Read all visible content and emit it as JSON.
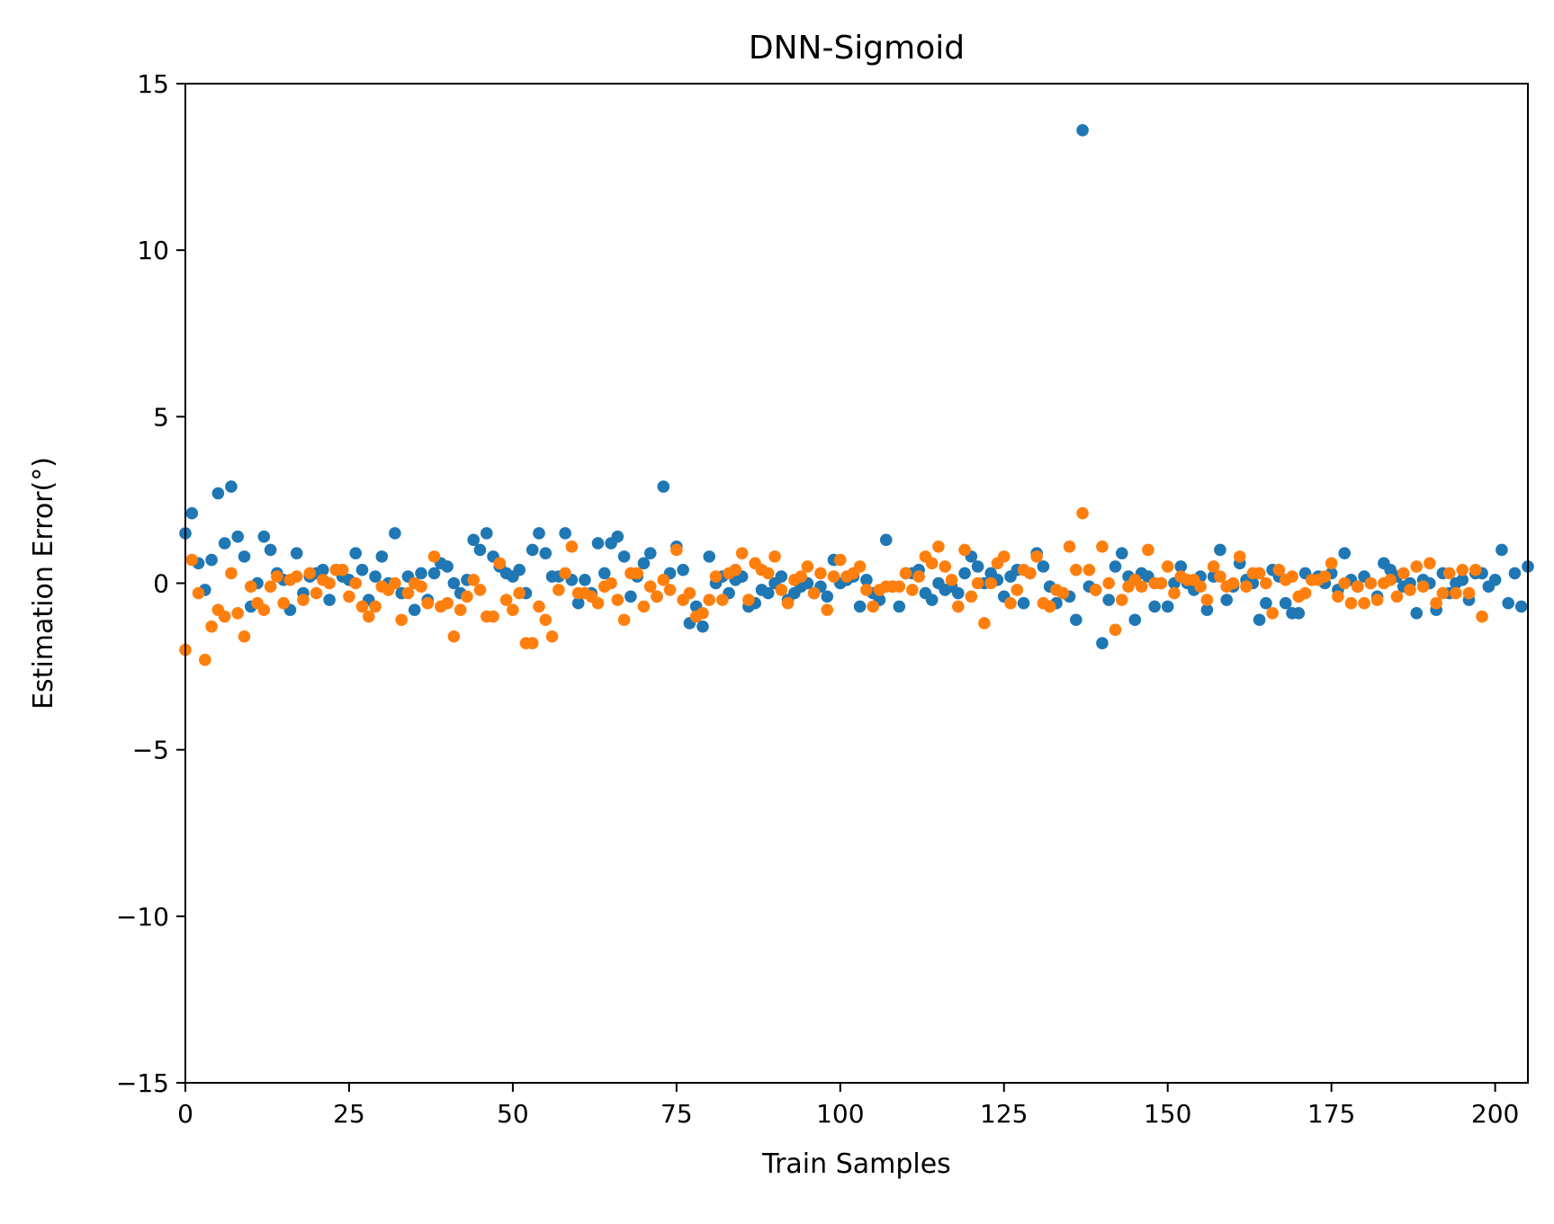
{
  "chart_data": {
    "type": "scatter",
    "title": "DNN-Sigmoid",
    "xlabel": "Train Samples",
    "ylabel": "Estimation Error(°)",
    "xlim": [
      0,
      205
    ],
    "ylim": [
      -15,
      15
    ],
    "xticks": [
      0,
      25,
      50,
      75,
      100,
      125,
      150,
      175,
      200
    ],
    "yticks": [
      -15,
      -10,
      -5,
      0,
      5,
      10,
      15
    ],
    "ytick_labels": [
      "−15",
      "−10",
      "−5",
      "0",
      "5",
      "10",
      "15"
    ],
    "grid": false,
    "colors": [
      "#1f77b4",
      "#ff7f0e"
    ],
    "series": [
      {
        "values": [
          1.5,
          2.1,
          0.6,
          -0.2,
          0.7,
          2.7,
          1.2,
          2.9,
          1.4,
          0.8,
          -0.7,
          0.0,
          1.4,
          1.0,
          0.3,
          0.1,
          -0.8,
          0.9,
          -0.3,
          0.2,
          0.3,
          0.4,
          -0.5,
          0.4,
          0.2,
          0.1,
          0.9,
          0.4,
          -0.5,
          0.2,
          0.8,
          0.0,
          1.5,
          -0.3,
          0.2,
          -0.8,
          0.3,
          -0.5,
          0.3,
          0.6,
          0.5,
          0.0,
          -0.3,
          0.1,
          1.3,
          1.0,
          1.5,
          0.8,
          0.5,
          0.3,
          0.2,
          0.4,
          -0.3,
          1.0,
          1.5,
          0.9,
          0.2,
          0.2,
          1.5,
          0.1,
          -0.6,
          0.1,
          -0.3,
          1.2,
          0.3,
          1.2,
          1.4,
          0.8,
          -0.4,
          0.2,
          0.6,
          0.9,
          -0.4,
          2.9,
          0.3,
          1.1,
          0.4,
          -1.2,
          -0.7,
          -1.3,
          0.8,
          0.0,
          0.2,
          -0.3,
          0.1,
          0.2,
          -0.7,
          -0.6,
          -0.2,
          -0.3,
          0.0,
          0.2,
          -0.5,
          -0.3,
          -0.1,
          0.0,
          -0.3,
          -0.1,
          -0.4,
          0.7,
          0.0,
          0.1,
          0.2,
          -0.7,
          0.1,
          -0.3,
          -0.5,
          1.3,
          -0.1,
          -0.7,
          0.3,
          0.3,
          0.4,
          -0.3,
          -0.5,
          0.0,
          -0.2,
          -0.1,
          -0.3,
          0.3,
          0.8,
          0.5,
          0.0,
          0.3,
          0.1,
          -0.4,
          0.2,
          0.4,
          -0.6,
          0.3,
          0.9,
          0.5,
          -0.1,
          -0.6,
          -0.3,
          -0.4,
          -1.1,
          13.6,
          -0.1,
          -0.2,
          -1.8,
          -0.5,
          0.5,
          0.9,
          0.2,
          -1.1,
          0.3,
          0.2,
          -0.7,
          0.0,
          -0.7,
          0.0,
          0.5,
          0.0,
          -0.2,
          0.2,
          -0.8,
          0.2,
          1.0,
          -0.5,
          -0.1,
          0.6,
          0.1,
          0.0,
          -1.1,
          -0.6,
          0.4,
          0.2,
          -0.6,
          -0.9,
          -0.9,
          0.3,
          0.1,
          0.2,
          0.0,
          0.3,
          -0.2,
          0.9,
          0.1,
          -0.1,
          0.2,
          0.0,
          -0.4,
          0.6,
          0.4,
          0.2,
          -0.1,
          0.0,
          -0.9,
          0.1,
          0.0,
          -0.8,
          0.3,
          -0.3,
          0.0,
          0.1,
          -0.5,
          0.3,
          0.3,
          -0.1,
          0.1,
          1.0,
          -0.6,
          0.3,
          -0.7,
          0.5
        ],
        "x_start": 0
      },
      {
        "values": [
          -2.0,
          0.7,
          -0.3,
          -2.3,
          -1.3,
          -0.8,
          -1.0,
          0.3,
          -0.9,
          -1.6,
          -0.1,
          -0.6,
          -0.8,
          -0.1,
          0.2,
          -0.6,
          0.1,
          0.2,
          -0.5,
          0.3,
          -0.3,
          0.1,
          0.0,
          0.4,
          0.4,
          -0.4,
          0.0,
          -0.7,
          -1.0,
          -0.7,
          -0.1,
          -0.2,
          0.0,
          -1.1,
          -0.3,
          0.0,
          -0.1,
          -0.6,
          0.8,
          -0.7,
          -0.6,
          -1.6,
          -0.8,
          -0.4,
          0.1,
          -0.2,
          -1.0,
          -1.0,
          0.6,
          -0.5,
          -0.8,
          -0.3,
          -1.8,
          -1.8,
          -0.7,
          -1.1,
          -1.6,
          -0.2,
          0.3,
          1.1,
          -0.3,
          -0.3,
          -0.4,
          -0.6,
          -0.1,
          0.0,
          -0.5,
          -1.1,
          0.3,
          0.3,
          -0.7,
          -0.1,
          -0.4,
          0.1,
          -0.2,
          1.0,
          -0.5,
          -0.3,
          -1.0,
          -0.9,
          -0.5,
          0.2,
          -0.5,
          0.3,
          0.4,
          0.9,
          -0.5,
          0.6,
          0.4,
          0.3,
          0.8,
          -0.2,
          -0.6,
          0.1,
          0.2,
          0.5,
          -0.3,
          0.3,
          -0.8,
          0.2,
          0.7,
          0.2,
          0.3,
          0.5,
          -0.2,
          -0.7,
          -0.2,
          -0.1,
          -0.1,
          -0.1,
          0.3,
          -0.2,
          0.2,
          0.8,
          0.6,
          1.1,
          0.5,
          0.1,
          -0.7,
          1.0,
          -0.4,
          0.0,
          -1.2,
          0.0,
          0.6,
          0.8,
          -0.6,
          -0.2,
          0.4,
          0.3,
          0.8,
          -0.6,
          -0.7,
          -0.2,
          -0.3,
          1.1,
          0.4,
          2.1,
          0.4,
          -0.2,
          1.1,
          0.0,
          -1.4,
          -0.5,
          -0.1,
          0.1,
          -0.1,
          1.0,
          0.0,
          0.0,
          0.5,
          -0.3,
          0.2,
          0.1,
          0.1,
          -0.1,
          -0.5,
          0.5,
          0.2,
          -0.1,
          0.0,
          0.8,
          -0.1,
          0.3,
          0.3,
          0.0,
          -0.9,
          0.4,
          0.1,
          0.2,
          -0.4,
          -0.3,
          0.1,
          0.1,
          0.2,
          0.6,
          -0.4,
          0.0,
          -0.6,
          -0.1,
          -0.6,
          0.0,
          -0.5,
          0.0,
          0.1,
          -0.4,
          0.3,
          -0.2,
          0.5,
          -0.1,
          0.6,
          -0.6,
          -0.3,
          0.3,
          -0.3,
          0.4,
          -0.3,
          0.4,
          -1.0
        ],
        "x_start": 0
      }
    ]
  }
}
